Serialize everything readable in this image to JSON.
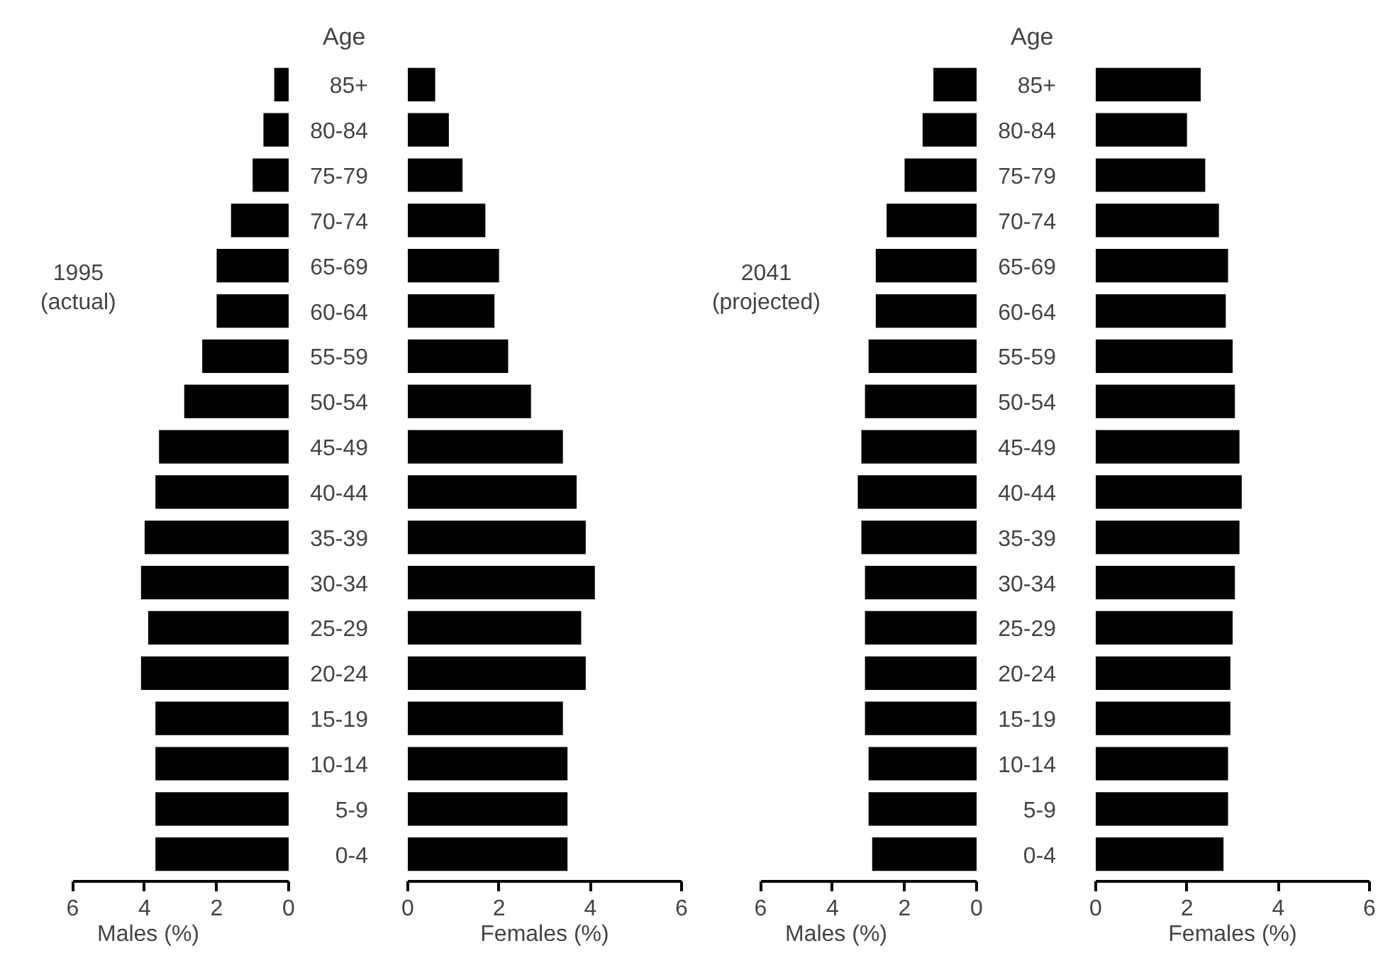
{
  "chart_data": [
    {
      "type": "bar",
      "orientation": "horizontal",
      "values": [
        0.4,
        0.7,
        1.0,
        1.6,
        2.0,
        2.0,
        2.4,
        2.9,
        3.6,
        3.7,
        4.0,
        4.1,
        3.9,
        4.1,
        3.7,
        3.7,
        3.7,
        3.7
      ],
      "color": "#000000",
      "xlim": [
        6,
        0
      ],
      "xticks": [
        6,
        4,
        2,
        0
      ],
      "xlabel": "Males (%)",
      "tick_labels": "x",
      "grid": false,
      "annotations": [
        "1995\n(actual)"
      ]
    },
    {
      "type": "bar",
      "orientation": "horizontal",
      "categories": [
        "85+",
        "80-84",
        "75-79",
        "70-74",
        "65-69",
        "60-64",
        "55-59",
        "50-54",
        "45-49",
        "40-44",
        "35-39",
        "30-34",
        "25-29",
        "20-24",
        "15-19",
        "10-14",
        "5-9",
        "0-4"
      ],
      "values": [
        0.6,
        0.9,
        1.2,
        1.7,
        2.0,
        1.9,
        2.2,
        2.7,
        3.4,
        3.7,
        3.9,
        4.1,
        3.8,
        3.9,
        3.4,
        3.5,
        3.5,
        3.5
      ],
      "color": "#000000",
      "xlim": [
        0,
        6
      ],
      "xticks": [
        0,
        2,
        4,
        6
      ],
      "xlabel": "Females (%)",
      "ylabel": "Age",
      "grid": false
    },
    {
      "type": "bar",
      "orientation": "horizontal",
      "values": [
        1.2,
        1.5,
        2.0,
        2.5,
        2.8,
        2.8,
        3.0,
        3.1,
        3.2,
        3.3,
        3.2,
        3.1,
        3.1,
        3.1,
        3.1,
        3.0,
        3.0,
        2.9
      ],
      "color": "#000000",
      "xlim": [
        6,
        0
      ],
      "xticks": [
        6,
        4,
        2,
        0
      ],
      "xlabel": "Males (%)",
      "tick_labels": "x",
      "grid": false,
      "annotations": [
        "2041\n(projected)"
      ]
    },
    {
      "type": "bar",
      "orientation": "horizontal",
      "categories": [
        "85+",
        "80-84",
        "75-79",
        "70-74",
        "65-69",
        "60-64",
        "55-59",
        "50-54",
        "45-49",
        "40-44",
        "35-39",
        "30-34",
        "25-29",
        "20-24",
        "15-19",
        "10-14",
        "5-9",
        "0-4"
      ],
      "values": [
        2.3,
        2.0,
        2.4,
        2.7,
        2.9,
        2.85,
        3.0,
        3.05,
        3.15,
        3.2,
        3.15,
        3.05,
        3.0,
        2.95,
        2.95,
        2.9,
        2.9,
        2.8
      ],
      "color": "#000000",
      "xlim": [
        0,
        6
      ],
      "xticks": [
        0,
        2,
        4,
        6
      ],
      "xlabel": "Females (%)",
      "ylabel": "Age",
      "grid": false
    }
  ]
}
